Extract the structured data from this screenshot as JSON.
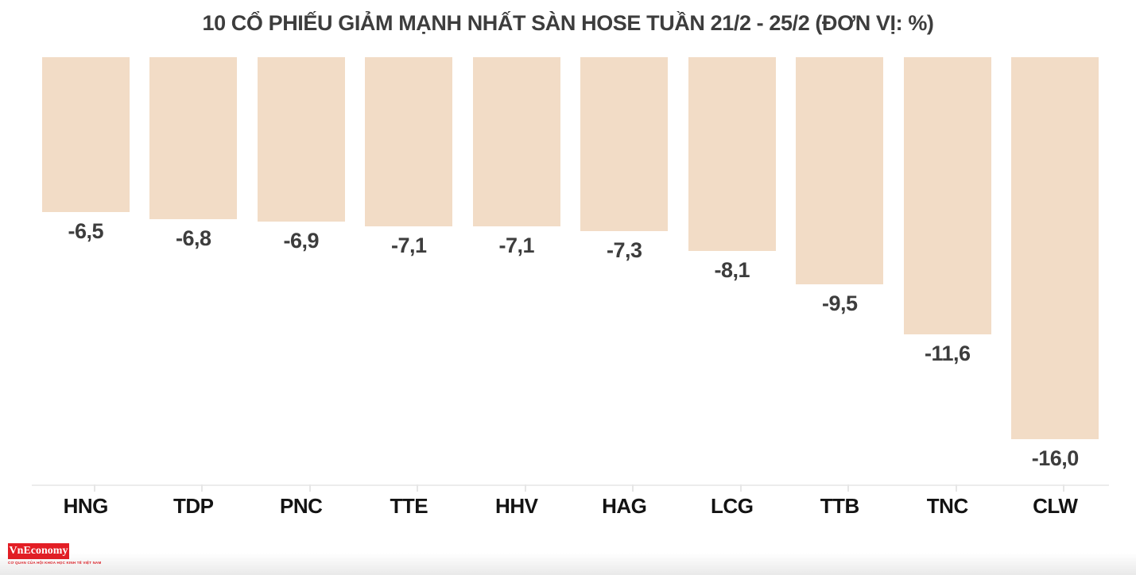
{
  "title": "10 CỔ PHIẾU GIẢM MẠNH NHẤT SÀN HOSE TUẦN 21/2 - 25/2 (ĐƠN VỊ: %)",
  "chart_data": {
    "type": "bar",
    "orientation": "vertical",
    "direction": "negative-from-top-baseline",
    "title": "10 CỔ PHIẾU GIẢM MẠNH NHẤT SÀN HOSE TUẦN 21/2 - 25/2 (ĐƠN VỊ: %)",
    "unit": "%",
    "categories": [
      "HNG",
      "TDP",
      "PNC",
      "TTE",
      "HHV",
      "HAG",
      "LCG",
      "TTB",
      "TNC",
      "CLW"
    ],
    "values": [
      -6.5,
      -6.8,
      -6.9,
      -7.1,
      -7.1,
      -7.3,
      -8.1,
      -9.5,
      -11.6,
      -16.0
    ],
    "value_labels": [
      "-6,5",
      "-6,8",
      "-6,9",
      "-7,1",
      "-7,1",
      "-7,3",
      "-8,1",
      "-9,5",
      "-11,6",
      "-16,0"
    ],
    "ylim": [
      -16,
      0
    ],
    "grid": false,
    "legend": false,
    "bar_color": "#f2dcc6",
    "value_label_color": "#3d3d3d",
    "category_label_color": "#131313",
    "axis_color": "#ececec"
  },
  "branding": {
    "logo_text": "VnEconomy",
    "logo_bg_color": "#e31e25",
    "tagline": "CƠ QUAN CỦA HỘI KHOA HỌC KINH TẾ VIỆT NAM",
    "tagline_color": "#e31e25"
  }
}
